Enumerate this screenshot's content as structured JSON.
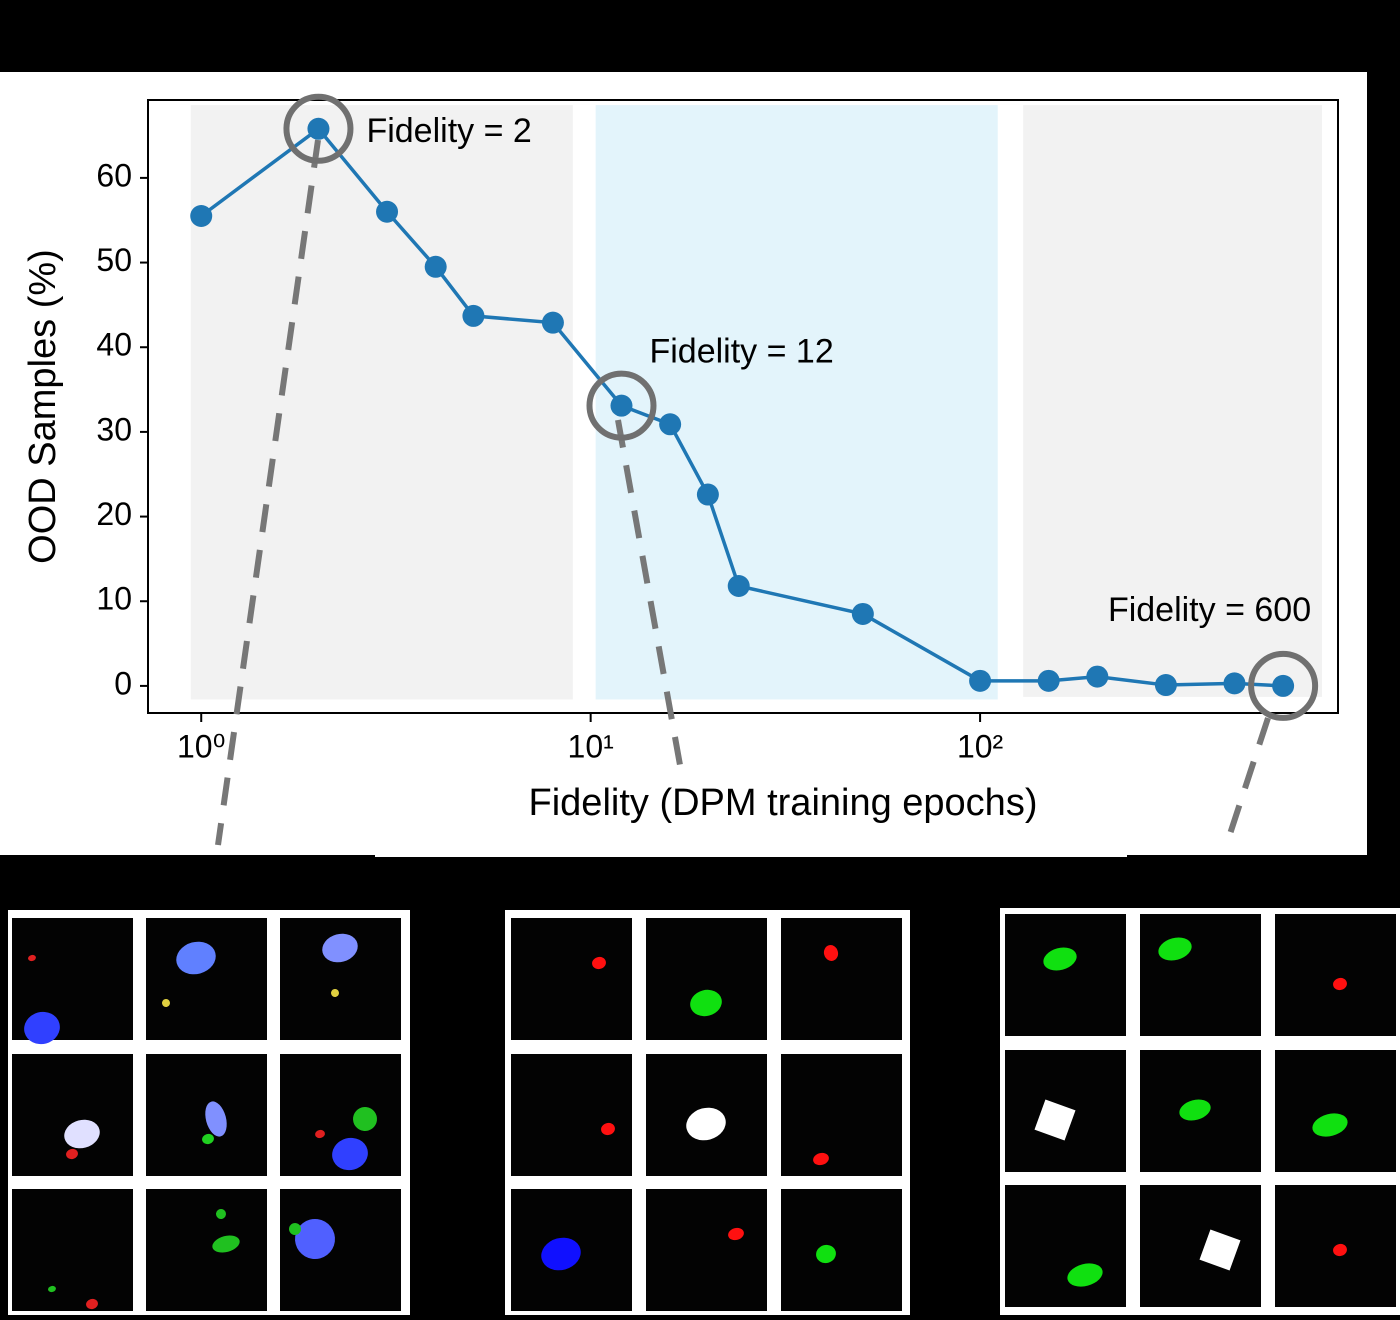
{
  "chart_data": {
    "type": "line",
    "x_label": "Fidelity (DPM training epochs)",
    "y_label": "OOD Samples (%)",
    "x": [
      1,
      2,
      3,
      4,
      5,
      8,
      12,
      16,
      20,
      24,
      50,
      100,
      150,
      200,
      300,
      450,
      600
    ],
    "series": [
      {
        "name": "OOD Samples",
        "color": "#1f77b4",
        "values": [
          55.5,
          65.8,
          56.0,
          49.5,
          43.7,
          42.9,
          33.1,
          30.9,
          22.6,
          11.8,
          8.5,
          0.6,
          0.6,
          1.1,
          0.1,
          0.3,
          0.0
        ]
      }
    ],
    "xscale": "log",
    "xlim": [
      0.73,
      830
    ],
    "ylim": [
      -3.2,
      69.2
    ],
    "xticks": [
      {
        "value": 1,
        "label": "10⁰"
      },
      {
        "value": 10,
        "label": "10¹"
      },
      {
        "value": 100,
        "label": "10²"
      }
    ],
    "yticks": [
      0,
      10,
      20,
      30,
      40,
      50,
      60
    ],
    "regions": [
      {
        "x": [
          0.94,
          9.0
        ],
        "y": [
          -1.6,
          68.6
        ],
        "color": "#f2f2f2"
      },
      {
        "x": [
          10.3,
          111
        ],
        "y": [
          -1.6,
          68.6
        ],
        "color": "#e3f4fb"
      },
      {
        "x": [
          129,
          755
        ],
        "y": [
          -1.3,
          68.6
        ],
        "color": "#f2f2f2"
      }
    ],
    "annotations": [
      {
        "text": "Fidelity = 2",
        "point": 1
      },
      {
        "text": "Fidelity = 12",
        "point": 6
      },
      {
        "text": "Fidelity = 600",
        "point": 16
      }
    ]
  }
}
